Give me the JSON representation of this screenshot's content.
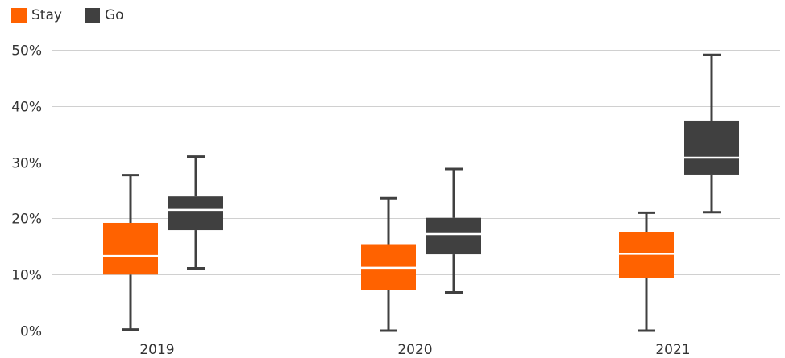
{
  "chart_data": {
    "type": "boxplot",
    "title": "",
    "xlabel": "",
    "ylabel": "",
    "categories": [
      "2019",
      "2020",
      "2021"
    ],
    "ylim": [
      0,
      50
    ],
    "yticks": [
      0,
      10,
      20,
      30,
      40,
      50
    ],
    "ytick_labels": [
      "0%",
      "10%",
      "20%",
      "30%",
      "40%",
      "50%"
    ],
    "grid": true,
    "legend_position": "top-left",
    "series": [
      {
        "name": "Stay",
        "color": "#FF6200",
        "median_color": "#ffffff",
        "boxes": [
          {
            "min": 0.2,
            "q1": 10.0,
            "median": 13.3,
            "q3": 19.2,
            "max": 27.7
          },
          {
            "min": 0.0,
            "q1": 7.2,
            "median": 11.2,
            "q3": 15.4,
            "max": 23.6
          },
          {
            "min": 0.0,
            "q1": 9.4,
            "median": 13.7,
            "q3": 17.6,
            "max": 21.0
          }
        ]
      },
      {
        "name": "Go",
        "color": "#404040",
        "median_color": "#ffffff",
        "boxes": [
          {
            "min": 11.1,
            "q1": 17.9,
            "median": 21.5,
            "q3": 23.9,
            "max": 31.0
          },
          {
            "min": 6.8,
            "q1": 13.6,
            "median": 17.2,
            "q3": 20.1,
            "max": 28.8
          },
          {
            "min": 21.1,
            "q1": 27.8,
            "median": 30.8,
            "q3": 37.4,
            "max": 49.1
          }
        ]
      }
    ]
  }
}
